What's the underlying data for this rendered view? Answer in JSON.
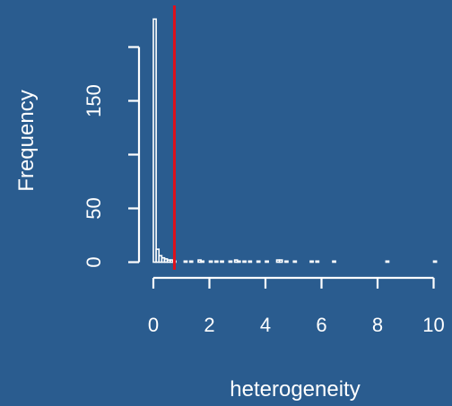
{
  "chart_data": {
    "type": "bar",
    "title": "",
    "xlabel": "heterogeneity",
    "ylabel": "Frequency",
    "xlim": [
      0,
      10.2
    ],
    "ylim": [
      0,
      225
    ],
    "x_ticks": [
      0,
      2,
      4,
      6,
      8,
      10
    ],
    "y_ticks": [
      0,
      50,
      150
    ],
    "y_axis_extent": [
      0,
      200
    ],
    "bin_width": 0.1,
    "bins": [
      {
        "x0": 0.0,
        "count": 226
      },
      {
        "x0": 0.1,
        "count": 12
      },
      {
        "x0": 0.2,
        "count": 6
      },
      {
        "x0": 0.3,
        "count": 4
      },
      {
        "x0": 0.4,
        "count": 3
      },
      {
        "x0": 0.5,
        "count": 2
      },
      {
        "x0": 0.6,
        "count": 2
      },
      {
        "x0": 0.7,
        "count": 1
      },
      {
        "x0": 1.1,
        "count": 1
      },
      {
        "x0": 1.3,
        "count": 1
      },
      {
        "x0": 1.6,
        "count": 2
      },
      {
        "x0": 1.7,
        "count": 1
      },
      {
        "x0": 2.0,
        "count": 1
      },
      {
        "x0": 2.2,
        "count": 1
      },
      {
        "x0": 2.4,
        "count": 1
      },
      {
        "x0": 2.7,
        "count": 1
      },
      {
        "x0": 2.9,
        "count": 2
      },
      {
        "x0": 3.0,
        "count": 1
      },
      {
        "x0": 3.2,
        "count": 1
      },
      {
        "x0": 3.4,
        "count": 1
      },
      {
        "x0": 3.7,
        "count": 1
      },
      {
        "x0": 4.0,
        "count": 1
      },
      {
        "x0": 4.4,
        "count": 2
      },
      {
        "x0": 4.5,
        "count": 2
      },
      {
        "x0": 4.7,
        "count": 1
      },
      {
        "x0": 5.0,
        "count": 1
      },
      {
        "x0": 5.6,
        "count": 1
      },
      {
        "x0": 5.8,
        "count": 1
      },
      {
        "x0": 6.4,
        "count": 1
      },
      {
        "x0": 8.3,
        "count": 1
      },
      {
        "x0": 10.0,
        "count": 1
      }
    ],
    "reference_line": {
      "x": 0.75,
      "color": "#e0101a"
    }
  }
}
